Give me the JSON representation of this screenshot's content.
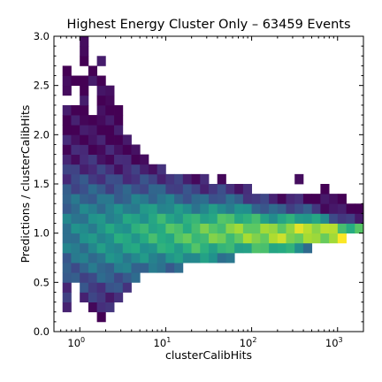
{
  "chart_data": {
    "type": "heatmap",
    "title": "Highest Energy Cluster Only – 63459 Events",
    "xlabel": "clusterCalibHits",
    "ylabel": "Predictions / clusterCalibHits",
    "x_scale": "log",
    "xlim": [
      0.5,
      2000
    ],
    "ylim": [
      0.0,
      3.0
    ],
    "x_ticks": [
      {
        "value": 1,
        "base": "10",
        "exp": "0"
      },
      {
        "value": 10,
        "base": "10",
        "exp": "1"
      },
      {
        "value": 100,
        "base": "10",
        "exp": "2"
      },
      {
        "value": 1000,
        "base": "10",
        "exp": "3"
      }
    ],
    "y_ticks": [
      "0.0",
      "0.5",
      "1.0",
      "1.5",
      "2.0",
      "2.5",
      "3.0"
    ],
    "grid": false,
    "colormap": "viridis",
    "empty_bins": "white",
    "n_xbins": 36,
    "n_ybins": 30,
    "bin_column_ranges": [
      [
        0,
        1,
        [
          2,
          3,
          4,
          5,
          6,
          7,
          8,
          9,
          10,
          11,
          12,
          13,
          14,
          15,
          16,
          17,
          18,
          19,
          20,
          21,
          22,
          24,
          25,
          26
        ]
      ],
      [
        0,
        2,
        [
          5,
          6,
          7,
          8,
          9,
          10,
          11,
          12,
          13,
          14,
          15,
          16,
          17,
          18,
          19,
          20,
          21,
          22,
          25
        ]
      ],
      [
        0,
        3,
        [
          3,
          4,
          5,
          6,
          7,
          8,
          9,
          10,
          11,
          12,
          13,
          14,
          15,
          16,
          17,
          18,
          19,
          20,
          21,
          22,
          23,
          24,
          25,
          27,
          28,
          29
        ]
      ],
      [
        0,
        4,
        [
          2,
          3,
          4,
          5,
          6,
          7,
          8,
          9,
          10,
          11,
          12,
          13,
          14,
          15,
          16,
          17,
          18,
          19,
          20,
          21,
          25,
          26
        ]
      ],
      [
        0,
        5,
        [
          1,
          2,
          3,
          4,
          5,
          6,
          7,
          8,
          9,
          10,
          11,
          12,
          13,
          14,
          15,
          16,
          17,
          18,
          19,
          20,
          21,
          22,
          23,
          24,
          25,
          27
        ]
      ],
      [
        0,
        6,
        [
          2,
          3,
          4,
          5,
          6,
          7,
          8,
          9,
          10,
          11,
          12,
          13,
          14,
          15,
          16,
          17,
          18,
          19,
          20,
          21,
          22,
          23,
          24
        ]
      ],
      [
        0,
        7,
        [
          3,
          4,
          5,
          6,
          7,
          8,
          9,
          10,
          11,
          12,
          13,
          14,
          15,
          16,
          17,
          18,
          19,
          20,
          21,
          22
        ]
      ],
      [
        0,
        8,
        [
          4,
          5,
          6,
          7,
          8,
          9,
          10,
          11,
          12,
          13,
          14,
          15,
          16,
          17,
          18,
          19
        ]
      ],
      [
        0,
        9,
        [
          5,
          6,
          7,
          8,
          9,
          10,
          11,
          12,
          13,
          14,
          15,
          16,
          17,
          18
        ]
      ],
      [
        0,
        10,
        [
          6,
          7,
          8,
          9,
          10,
          11,
          12,
          13,
          14,
          15,
          16,
          17
        ]
      ],
      [
        0,
        11,
        [
          6,
          7,
          8,
          9,
          10,
          11,
          12,
          13,
          14,
          15,
          16
        ]
      ],
      [
        0,
        12,
        [
          6,
          7,
          8,
          9,
          10,
          11,
          12,
          13,
          14,
          15,
          16
        ]
      ],
      [
        0,
        13,
        [
          6,
          7,
          8,
          9,
          10,
          11,
          12,
          13,
          14,
          15
        ]
      ],
      [
        0,
        14,
        [
          6,
          7,
          8,
          9,
          10,
          11,
          12,
          13,
          14,
          15
        ]
      ],
      [
        0,
        15,
        [
          7,
          8,
          9,
          10,
          11,
          12,
          13,
          14,
          15
        ]
      ],
      [
        0,
        16,
        [
          7,
          8,
          9,
          10,
          11,
          12,
          13,
          14,
          15
        ]
      ],
      [
        0,
        17,
        [
          7,
          8,
          9,
          10,
          11,
          12,
          13,
          14,
          15
        ]
      ],
      [
        0,
        18,
        [
          7,
          8,
          9,
          10,
          11,
          12,
          13,
          14
        ]
      ],
      [
        0,
        19,
        [
          7,
          8,
          9,
          10,
          11,
          12,
          13,
          14,
          15
        ]
      ],
      [
        0,
        20,
        [
          7,
          8,
          9,
          10,
          11,
          12,
          13,
          14
        ]
      ],
      [
        0,
        21,
        [
          8,
          9,
          10,
          11,
          12,
          13,
          14
        ]
      ],
      [
        0,
        22,
        [
          8,
          9,
          10,
          11,
          12,
          13,
          14
        ]
      ],
      [
        0,
        23,
        [
          8,
          9,
          10,
          11,
          12,
          13
        ]
      ],
      [
        0,
        24,
        [
          8,
          9,
          10,
          11,
          12,
          13
        ]
      ],
      [
        0,
        25,
        [
          8,
          9,
          10,
          11,
          12,
          13
        ]
      ],
      [
        0,
        26,
        [
          8,
          9,
          10,
          11,
          12,
          13
        ]
      ],
      [
        0,
        27,
        [
          8,
          9,
          10,
          11,
          12,
          13
        ]
      ],
      [
        0,
        28,
        [
          8,
          9,
          10,
          11,
          12,
          13,
          15
        ]
      ],
      [
        0,
        29,
        [
          8,
          9,
          10,
          11,
          12,
          13
        ]
      ],
      [
        0,
        30,
        [
          9,
          10,
          11,
          12,
          13
        ]
      ],
      [
        0,
        31,
        [
          9,
          10,
          11,
          12,
          13,
          14
        ]
      ],
      [
        0,
        32,
        [
          9,
          10,
          11,
          12,
          13
        ]
      ],
      [
        0,
        33,
        [
          9,
          10,
          11,
          12,
          13
        ]
      ],
      [
        0,
        34,
        [
          10,
          11,
          12
        ]
      ],
      [
        0,
        35,
        [
          10,
          11,
          12
        ]
      ]
    ]
  }
}
